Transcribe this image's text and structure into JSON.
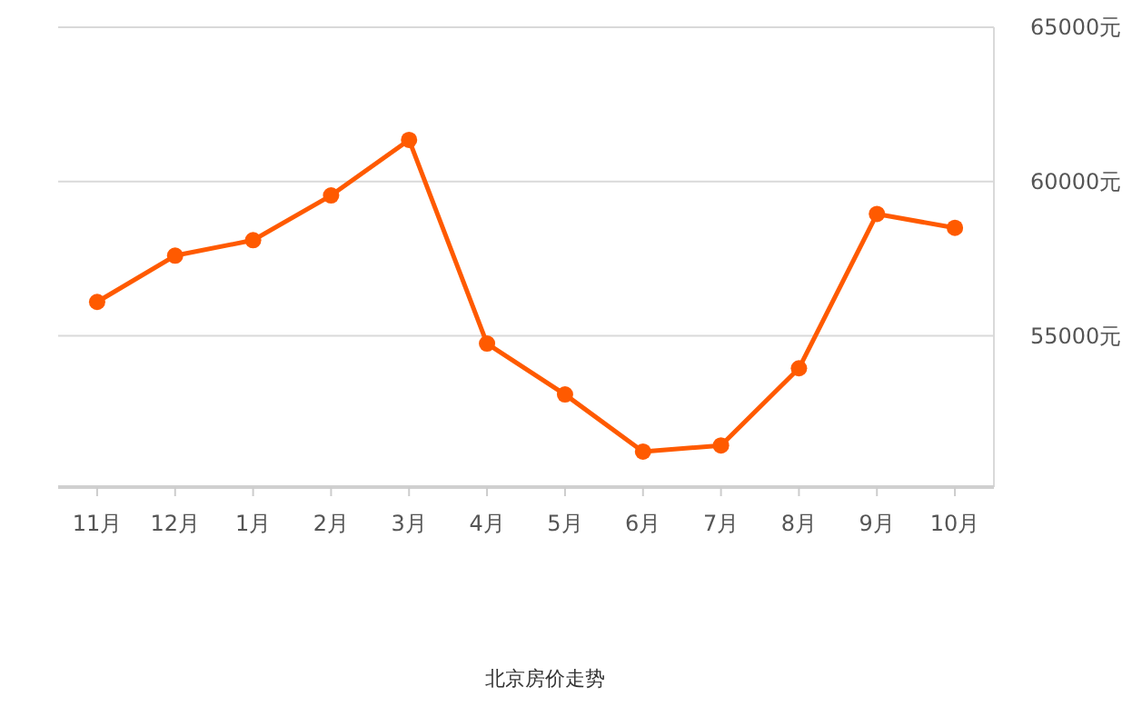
{
  "chart_data": {
    "type": "line",
    "title": "北京房价走势",
    "categories": [
      "11月",
      "12月",
      "1月",
      "2月",
      "3月",
      "4月",
      "5月",
      "6月",
      "7月",
      "8月",
      "9月",
      "10月"
    ],
    "series": [
      {
        "color": "#ff5a00",
        "values": [
          56100,
          57600,
          58100,
          59550,
          61350,
          54750,
          53100,
          51250,
          51450,
          53950,
          58950,
          58500
        ]
      }
    ],
    "ylim": [
      50100,
      65000
    ],
    "yticks": [
      {
        "value": 55000,
        "label": "55000元"
      },
      {
        "value": 60000,
        "label": "60000元"
      },
      {
        "value": 65000,
        "label": "65000元"
      }
    ],
    "grid": "y",
    "marker": "circle",
    "line_style": "solid"
  }
}
